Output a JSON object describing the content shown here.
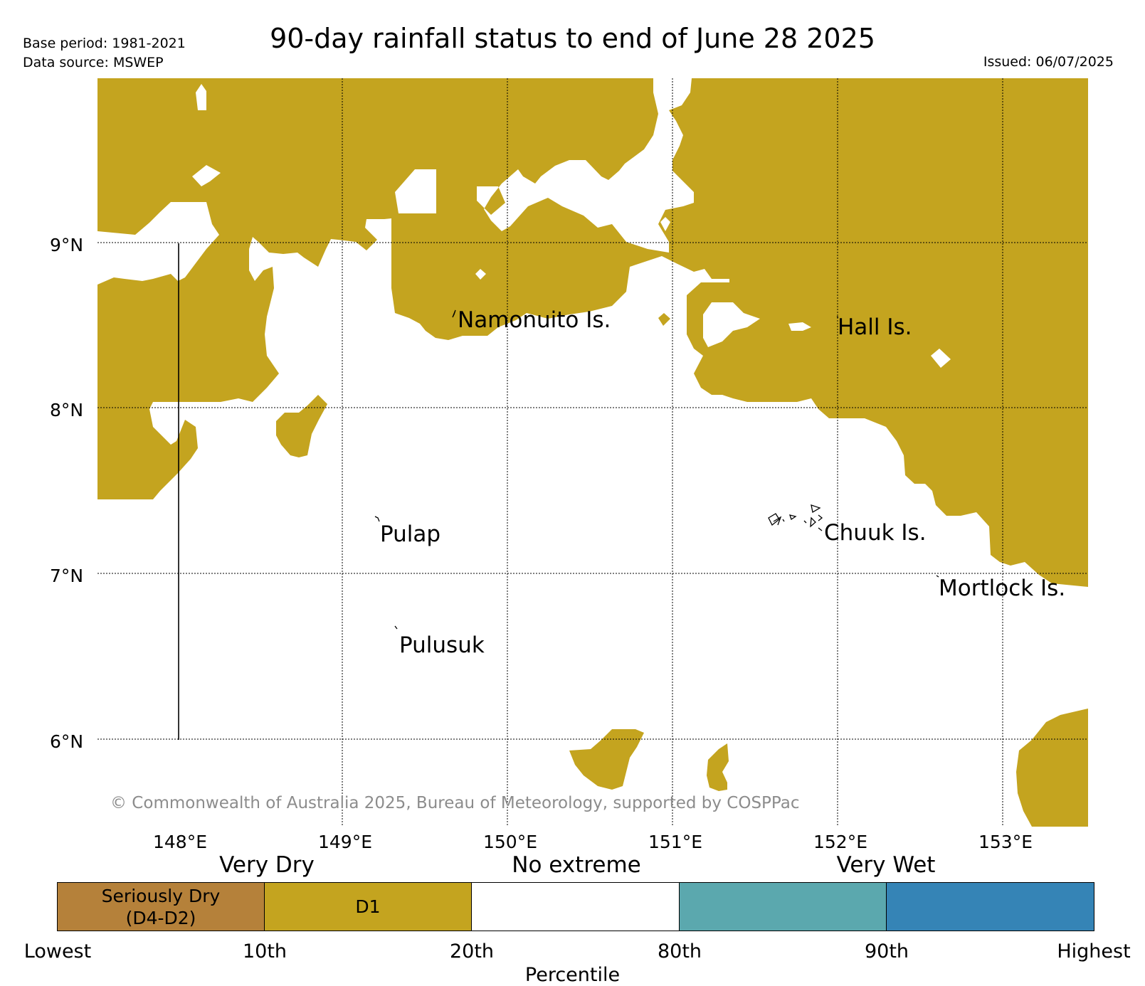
{
  "header": {
    "base_period": "Base period: 1981-2021",
    "data_source": "Data source: MSWEP",
    "title": "90-day rainfall status to end of June 28 2025",
    "issued": "Issued: 06/07/2025"
  },
  "map": {
    "extent": {
      "lon_min": 147.5,
      "lon_max": 153.5,
      "lat_min": 5.5,
      "lat_max": 9.95
    },
    "lat_ticks": [
      "9°N",
      "8°N",
      "7°N",
      "6°N"
    ],
    "lon_ticks": [
      "148°E",
      "149°E",
      "150°E",
      "151°E",
      "152°E",
      "153°E"
    ],
    "dominant_fill_category": "D1",
    "fill_color": "#c4a41f",
    "places": [
      {
        "name": "Namonuito Is.",
        "lon": 149.7,
        "lat": 8.55
      },
      {
        "name": "Hall Is.",
        "lon": 152.0,
        "lat": 8.5
      },
      {
        "name": "Pulap",
        "lon": 149.3,
        "lat": 7.25
      },
      {
        "name": "Chuuk Is.",
        "lon": 151.9,
        "lat": 7.25
      },
      {
        "name": "Mortlock Is.",
        "lon": 152.6,
        "lat": 6.95
      },
      {
        "name": "Pulusuk",
        "lon": 149.4,
        "lat": 6.6
      }
    ],
    "copyright": "© Commonwealth of Australia 2025, Bureau of Meteorology, supported by COSPPac"
  },
  "legend": {
    "headings": {
      "dry": "Very Dry",
      "normal": "No extreme",
      "wet": "Very Wet"
    },
    "categories": [
      {
        "label_line1": "Seriously Dry",
        "label_line2": "(D4-D2)",
        "color": "#b5813a"
      },
      {
        "label_line1": "D1",
        "label_line2": "",
        "color": "#c4a41f"
      },
      {
        "label_line1": "",
        "label_line2": "",
        "color": "#ffffff"
      },
      {
        "label_line1": "",
        "label_line2": "",
        "color": "#5ba8ae"
      },
      {
        "label_line1": "",
        "label_line2": "",
        "color": "#3584b6"
      }
    ],
    "ticks": [
      "Lowest",
      "10th",
      "20th",
      "80th",
      "90th",
      "Highest"
    ],
    "xlabel": "Percentile"
  }
}
